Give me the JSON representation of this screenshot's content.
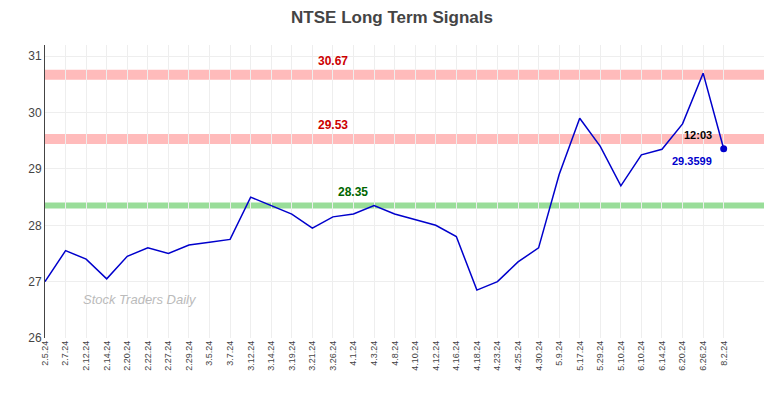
{
  "chart_data": {
    "type": "line",
    "title": "NTSE Long Term Signals",
    "categories": [
      "2.5.24",
      "2.7.24",
      "2.12.24",
      "2.14.24",
      "2.20.24",
      "2.22.24",
      "2.27.24",
      "2.29.24",
      "3.5.24",
      "3.7.24",
      "3.12.24",
      "3.14.24",
      "3.19.24",
      "3.21.24",
      "3.26.24",
      "4.1.24",
      "4.3.24",
      "4.8.24",
      "4.10.24",
      "4.12.24",
      "4.16.24",
      "4.18.24",
      "4.23.24",
      "4.25.24",
      "4.30.24",
      "5.9.24",
      "5.17.24",
      "5.29.24",
      "5.10.24",
      "6.10.24",
      "6.14.24",
      "6.20.24",
      "6.26.24",
      "8.2.24"
    ],
    "values": [
      27.0,
      27.55,
      27.4,
      27.05,
      27.45,
      27.6,
      27.5,
      27.65,
      27.7,
      27.75,
      28.5,
      28.35,
      28.2,
      27.95,
      28.15,
      28.2,
      28.35,
      28.2,
      28.1,
      28.0,
      27.8,
      26.85,
      27.0,
      27.35,
      27.6,
      28.9,
      29.9,
      29.4,
      28.7,
      29.25,
      29.35,
      29.8,
      30.7,
      29.36
    ],
    "color": "#0000cc",
    "marker": "circle",
    "reference_lines": [
      {
        "value": 30.67,
        "color": "#ffbbbb",
        "label_color": "#cc0000"
      },
      {
        "value": 29.53,
        "color": "#ffbbbb",
        "label_color": "#cc0000"
      },
      {
        "value": 28.35,
        "color": "#99dd99",
        "label_color": "#006600"
      }
    ],
    "annotations": [
      {
        "text": "12:03",
        "color": "#000000"
      },
      {
        "text": "29.3599",
        "color": "#0000cc"
      }
    ],
    "watermark": "Stock Traders Daily",
    "ylim": [
      26,
      31.2
    ],
    "yticks": [
      26,
      27,
      28,
      29,
      30,
      31
    ],
    "grid": true
  }
}
